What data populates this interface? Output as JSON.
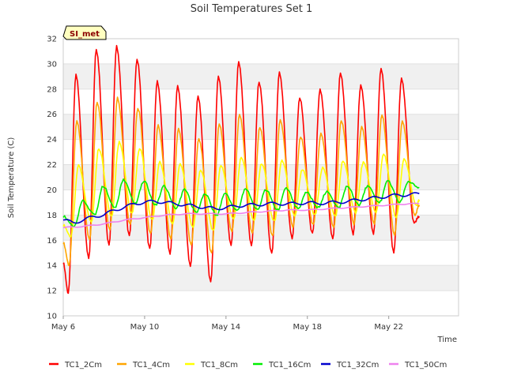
{
  "chart_data": {
    "type": "line",
    "title": "Soil Temperatures Set 1",
    "xlabel": "Time",
    "ylabel": "Soil Temperature (C)",
    "ylim": [
      10,
      32
    ],
    "xlim": [
      "2023-05-06",
      "2023-05-24"
    ],
    "y_ticks": [
      "10",
      "12",
      "14",
      "16",
      "18",
      "20",
      "22",
      "24",
      "26",
      "28",
      "30",
      "32"
    ],
    "x_ticks": [
      "May 6",
      "May 10",
      "May 14",
      "May 18",
      "May 22"
    ],
    "x_tick_dates": [
      "2023-05-06",
      "2023-05-10",
      "2023-05-14",
      "2023-05-18",
      "2023-05-22"
    ],
    "grid": "horizontal bands",
    "legend_position": "bottom",
    "site_label": "SI_met",
    "colors": {
      "TC1_2Cm": "#ff0000",
      "TC1_4Cm": "#ffa500",
      "TC1_8Cm": "#ffff00",
      "TC1_16Cm": "#00ee00",
      "TC1_32Cm": "#0000cd",
      "TC1_50Cm": "#ee82ee",
      "band": "#f0f0f0",
      "badge_fill": "#ffffc0"
    },
    "series": [
      {
        "name": "TC1_2Cm",
        "peaks": [
          {
            "x": "2023-05-06 15:00",
            "y": 29.1
          },
          {
            "x": "2023-05-07 15:00",
            "y": 31.2
          },
          {
            "x": "2023-05-08 15:00",
            "y": 31.4
          },
          {
            "x": "2023-05-09 15:00",
            "y": 30.4
          },
          {
            "x": "2023-05-10 15:00",
            "y": 28.6
          },
          {
            "x": "2023-05-11 15:00",
            "y": 28.2
          },
          {
            "x": "2023-05-12 15:00",
            "y": 27.5
          },
          {
            "x": "2023-05-13 15:00",
            "y": 29.0
          },
          {
            "x": "2023-05-14 15:00",
            "y": 30.2
          },
          {
            "x": "2023-05-15 15:00",
            "y": 28.6
          },
          {
            "x": "2023-05-16 15:00",
            "y": 29.3
          },
          {
            "x": "2023-05-17 15:00",
            "y": 27.3
          },
          {
            "x": "2023-05-18 15:00",
            "y": 28.0
          },
          {
            "x": "2023-05-19 15:00",
            "y": 29.3
          },
          {
            "x": "2023-05-20 15:00",
            "y": 28.3
          },
          {
            "x": "2023-05-21 15:00",
            "y": 29.6
          },
          {
            "x": "2023-05-22 15:00",
            "y": 28.8
          }
        ],
        "troughs": [
          {
            "x": "2023-05-06 06:00",
            "y": 11.8
          },
          {
            "x": "2023-05-07 06:00",
            "y": 14.5
          },
          {
            "x": "2023-05-08 06:00",
            "y": 15.6
          },
          {
            "x": "2023-05-09 06:00",
            "y": 16.3
          },
          {
            "x": "2023-05-10 06:00",
            "y": 15.3
          },
          {
            "x": "2023-05-11 06:00",
            "y": 14.9
          },
          {
            "x": "2023-05-12 06:00",
            "y": 13.9
          },
          {
            "x": "2023-05-13 06:00",
            "y": 12.7
          },
          {
            "x": "2023-05-14 06:00",
            "y": 15.5
          },
          {
            "x": "2023-05-15 06:00",
            "y": 15.5
          },
          {
            "x": "2023-05-16 06:00",
            "y": 14.9
          },
          {
            "x": "2023-05-17 06:00",
            "y": 16.1
          },
          {
            "x": "2023-05-18 06:00",
            "y": 16.5
          },
          {
            "x": "2023-05-19 06:00",
            "y": 16.1
          },
          {
            "x": "2023-05-20 06:00",
            "y": 16.5
          },
          {
            "x": "2023-05-21 06:00",
            "y": 16.5
          },
          {
            "x": "2023-05-22 06:00",
            "y": 15.0
          },
          {
            "x": "2023-05-23 06:00",
            "y": 17.4
          }
        ],
        "start": {
          "x": "2023-05-06 00:00",
          "y": 14.2
        },
        "end": {
          "x": "2023-05-23 12:00",
          "y": 17.9
        }
      },
      {
        "name": "TC1_4Cm",
        "peaks": [
          {
            "x": "2023-05-06 16:00",
            "y": 25.4
          },
          {
            "x": "2023-05-07 16:00",
            "y": 27.0
          },
          {
            "x": "2023-05-08 16:00",
            "y": 27.3
          },
          {
            "x": "2023-05-09 16:00",
            "y": 26.5
          },
          {
            "x": "2023-05-10 16:00",
            "y": 25.1
          },
          {
            "x": "2023-05-11 16:00",
            "y": 24.8
          },
          {
            "x": "2023-05-12 16:00",
            "y": 24.1
          },
          {
            "x": "2023-05-13 16:00",
            "y": 25.2
          },
          {
            "x": "2023-05-14 16:00",
            "y": 26.0
          },
          {
            "x": "2023-05-15 16:00",
            "y": 25.0
          },
          {
            "x": "2023-05-16 16:00",
            "y": 25.5
          },
          {
            "x": "2023-05-17 16:00",
            "y": 24.2
          },
          {
            "x": "2023-05-18 16:00",
            "y": 24.5
          },
          {
            "x": "2023-05-19 16:00",
            "y": 25.5
          },
          {
            "x": "2023-05-20 16:00",
            "y": 25.0
          },
          {
            "x": "2023-05-21 16:00",
            "y": 25.9
          },
          {
            "x": "2023-05-22 16:00",
            "y": 25.4
          }
        ],
        "troughs": [
          {
            "x": "2023-05-06 07:00",
            "y": 14.0
          },
          {
            "x": "2023-05-07 07:00",
            "y": 16.0
          },
          {
            "x": "2023-05-08 07:00",
            "y": 16.8
          },
          {
            "x": "2023-05-09 07:00",
            "y": 17.2
          },
          {
            "x": "2023-05-10 07:00",
            "y": 16.5
          },
          {
            "x": "2023-05-11 07:00",
            "y": 16.1
          },
          {
            "x": "2023-05-12 07:00",
            "y": 15.6
          },
          {
            "x": "2023-05-13 07:00",
            "y": 15.0
          },
          {
            "x": "2023-05-14 07:00",
            "y": 16.6
          },
          {
            "x": "2023-05-15 07:00",
            "y": 16.5
          },
          {
            "x": "2023-05-16 07:00",
            "y": 16.3
          },
          {
            "x": "2023-05-17 07:00",
            "y": 17.0
          },
          {
            "x": "2023-05-18 07:00",
            "y": 17.2
          },
          {
            "x": "2023-05-19 07:00",
            "y": 17.0
          },
          {
            "x": "2023-05-20 07:00",
            "y": 17.3
          },
          {
            "x": "2023-05-21 07:00",
            "y": 17.3
          },
          {
            "x": "2023-05-22 07:00",
            "y": 16.4
          },
          {
            "x": "2023-05-23 07:00",
            "y": 18.0
          }
        ],
        "start": {
          "x": "2023-05-06 00:00",
          "y": 15.8
        },
        "end": {
          "x": "2023-05-23 12:00",
          "y": 18.8
        }
      },
      {
        "name": "TC1_8Cm",
        "peaks": [
          {
            "x": "2023-05-06 18:00",
            "y": 21.9
          },
          {
            "x": "2023-05-07 18:00",
            "y": 23.3
          },
          {
            "x": "2023-05-08 18:00",
            "y": 23.8
          },
          {
            "x": "2023-05-09 18:00",
            "y": 23.3
          },
          {
            "x": "2023-05-10 18:00",
            "y": 22.2
          },
          {
            "x": "2023-05-11 18:00",
            "y": 22.0
          },
          {
            "x": "2023-05-12 18:00",
            "y": 21.6
          },
          {
            "x": "2023-05-13 18:00",
            "y": 21.9
          },
          {
            "x": "2023-05-14 18:00",
            "y": 22.6
          },
          {
            "x": "2023-05-15 18:00",
            "y": 22.1
          },
          {
            "x": "2023-05-16 18:00",
            "y": 22.3
          },
          {
            "x": "2023-05-17 18:00",
            "y": 21.6
          },
          {
            "x": "2023-05-18 18:00",
            "y": 21.8
          },
          {
            "x": "2023-05-19 18:00",
            "y": 22.3
          },
          {
            "x": "2023-05-20 18:00",
            "y": 22.2
          },
          {
            "x": "2023-05-21 18:00",
            "y": 22.8
          },
          {
            "x": "2023-05-22 18:00",
            "y": 22.4
          }
        ],
        "troughs": [
          {
            "x": "2023-05-06 09:00",
            "y": 16.3
          },
          {
            "x": "2023-05-07 09:00",
            "y": 17.4
          },
          {
            "x": "2023-05-08 09:00",
            "y": 17.9
          },
          {
            "x": "2023-05-09 09:00",
            "y": 18.1
          },
          {
            "x": "2023-05-10 09:00",
            "y": 17.6
          },
          {
            "x": "2023-05-11 09:00",
            "y": 17.3
          },
          {
            "x": "2023-05-12 09:00",
            "y": 17.0
          },
          {
            "x": "2023-05-13 09:00",
            "y": 16.8
          },
          {
            "x": "2023-05-14 09:00",
            "y": 17.6
          },
          {
            "x": "2023-05-15 09:00",
            "y": 17.5
          },
          {
            "x": "2023-05-16 09:00",
            "y": 17.5
          },
          {
            "x": "2023-05-17 09:00",
            "y": 17.9
          },
          {
            "x": "2023-05-18 09:00",
            "y": 18.0
          },
          {
            "x": "2023-05-19 09:00",
            "y": 17.9
          },
          {
            "x": "2023-05-20 09:00",
            "y": 18.2
          },
          {
            "x": "2023-05-21 09:00",
            "y": 18.2
          },
          {
            "x": "2023-05-22 09:00",
            "y": 17.8
          },
          {
            "x": "2023-05-23 09:00",
            "y": 18.8
          }
        ],
        "start": {
          "x": "2023-05-06 00:00",
          "y": 17.2
        },
        "end": {
          "x": "2023-05-23 12:00",
          "y": 19.2
        }
      },
      {
        "name": "TC1_16Cm",
        "peaks": [
          {
            "x": "2023-05-06 23:00",
            "y": 19.1
          },
          {
            "x": "2023-05-07 23:00",
            "y": 20.3
          },
          {
            "x": "2023-05-08 23:00",
            "y": 20.8
          },
          {
            "x": "2023-05-09 23:00",
            "y": 20.7
          },
          {
            "x": "2023-05-10 23:00",
            "y": 20.3
          },
          {
            "x": "2023-05-11 23:00",
            "y": 20.0
          },
          {
            "x": "2023-05-12 23:00",
            "y": 19.7
          },
          {
            "x": "2023-05-13 23:00",
            "y": 19.7
          },
          {
            "x": "2023-05-14 23:00",
            "y": 20.1
          },
          {
            "x": "2023-05-15 23:00",
            "y": 20.0
          },
          {
            "x": "2023-05-16 23:00",
            "y": 20.1
          },
          {
            "x": "2023-05-17 23:00",
            "y": 19.8
          },
          {
            "x": "2023-05-18 23:00",
            "y": 19.9
          },
          {
            "x": "2023-05-19 23:00",
            "y": 20.3
          },
          {
            "x": "2023-05-20 23:00",
            "y": 20.3
          },
          {
            "x": "2023-05-21 23:00",
            "y": 20.7
          },
          {
            "x": "2023-05-22 23:00",
            "y": 20.6
          }
        ],
        "troughs": [
          {
            "x": "2023-05-06 13:00",
            "y": 17.1
          },
          {
            "x": "2023-05-07 13:00",
            "y": 18.0
          },
          {
            "x": "2023-05-08 13:00",
            "y": 18.6
          },
          {
            "x": "2023-05-09 13:00",
            "y": 18.9
          },
          {
            "x": "2023-05-10 13:00",
            "y": 18.8
          },
          {
            "x": "2023-05-11 13:00",
            "y": 18.5
          },
          {
            "x": "2023-05-12 13:00",
            "y": 18.2
          },
          {
            "x": "2023-05-13 13:00",
            "y": 18.0
          },
          {
            "x": "2023-05-14 13:00",
            "y": 18.3
          },
          {
            "x": "2023-05-15 13:00",
            "y": 18.4
          },
          {
            "x": "2023-05-16 13:00",
            "y": 18.4
          },
          {
            "x": "2023-05-17 13:00",
            "y": 18.5
          },
          {
            "x": "2023-05-18 13:00",
            "y": 18.6
          },
          {
            "x": "2023-05-19 13:00",
            "y": 18.6
          },
          {
            "x": "2023-05-20 13:00",
            "y": 18.8
          },
          {
            "x": "2023-05-21 13:00",
            "y": 19.0
          },
          {
            "x": "2023-05-22 13:00",
            "y": 19.0
          }
        ],
        "start": {
          "x": "2023-05-06 00:00",
          "y": 17.9
        },
        "end": {
          "x": "2023-05-23 12:00",
          "y": 20.2
        }
      },
      {
        "name": "TC1_32Cm",
        "points": [
          {
            "x": "2023-05-06 00:00",
            "y": 17.6
          },
          {
            "x": "2023-05-06 12:00",
            "y": 17.4
          },
          {
            "x": "2023-05-07 00:00",
            "y": 17.6
          },
          {
            "x": "2023-05-07 12:00",
            "y": 17.9
          },
          {
            "x": "2023-05-08 00:00",
            "y": 18.0
          },
          {
            "x": "2023-05-08 12:00",
            "y": 18.4
          },
          {
            "x": "2023-05-09 00:00",
            "y": 18.6
          },
          {
            "x": "2023-05-09 12:00",
            "y": 18.9
          },
          {
            "x": "2023-05-10 00:00",
            "y": 19.0
          },
          {
            "x": "2023-05-10 12:00",
            "y": 19.1
          },
          {
            "x": "2023-05-11 00:00",
            "y": 19.0
          },
          {
            "x": "2023-05-11 12:00",
            "y": 18.9
          },
          {
            "x": "2023-05-12 00:00",
            "y": 18.8
          },
          {
            "x": "2023-05-12 12:00",
            "y": 18.7
          },
          {
            "x": "2023-05-13 00:00",
            "y": 18.6
          },
          {
            "x": "2023-05-13 12:00",
            "y": 18.5
          },
          {
            "x": "2023-05-14 00:00",
            "y": 18.6
          },
          {
            "x": "2023-05-14 12:00",
            "y": 18.7
          },
          {
            "x": "2023-05-15 00:00",
            "y": 18.8
          },
          {
            "x": "2023-05-15 12:00",
            "y": 18.8
          },
          {
            "x": "2023-05-16 00:00",
            "y": 18.9
          },
          {
            "x": "2023-05-16 12:00",
            "y": 18.9
          },
          {
            "x": "2023-05-17 00:00",
            "y": 18.9
          },
          {
            "x": "2023-05-17 12:00",
            "y": 18.9
          },
          {
            "x": "2023-05-18 00:00",
            "y": 19.0
          },
          {
            "x": "2023-05-18 12:00",
            "y": 18.9
          },
          {
            "x": "2023-05-19 00:00",
            "y": 19.0
          },
          {
            "x": "2023-05-19 12:00",
            "y": 19.0
          },
          {
            "x": "2023-05-20 00:00",
            "y": 19.1
          },
          {
            "x": "2023-05-20 12:00",
            "y": 19.2
          },
          {
            "x": "2023-05-21 00:00",
            "y": 19.3
          },
          {
            "x": "2023-05-21 12:00",
            "y": 19.4
          },
          {
            "x": "2023-05-22 00:00",
            "y": 19.5
          },
          {
            "x": "2023-05-22 12:00",
            "y": 19.6
          },
          {
            "x": "2023-05-23 00:00",
            "y": 19.6
          },
          {
            "x": "2023-05-23 12:00",
            "y": 19.7
          }
        ],
        "diurnal_amplitude": 0.12
      },
      {
        "name": "TC1_50Cm",
        "points": [
          {
            "x": "2023-05-06 00:00",
            "y": 17.0
          },
          {
            "x": "2023-05-07 00:00",
            "y": 17.1
          },
          {
            "x": "2023-05-08 00:00",
            "y": 17.3
          },
          {
            "x": "2023-05-09 00:00",
            "y": 17.6
          },
          {
            "x": "2023-05-10 00:00",
            "y": 17.8
          },
          {
            "x": "2023-05-11 00:00",
            "y": 18.0
          },
          {
            "x": "2023-05-12 00:00",
            "y": 18.1
          },
          {
            "x": "2023-05-13 00:00",
            "y": 18.1
          },
          {
            "x": "2023-05-14 00:00",
            "y": 18.1
          },
          {
            "x": "2023-05-15 00:00",
            "y": 18.2
          },
          {
            "x": "2023-05-16 00:00",
            "y": 18.3
          },
          {
            "x": "2023-05-17 00:00",
            "y": 18.4
          },
          {
            "x": "2023-05-18 00:00",
            "y": 18.4
          },
          {
            "x": "2023-05-19 00:00",
            "y": 18.5
          },
          {
            "x": "2023-05-20 00:00",
            "y": 18.6
          },
          {
            "x": "2023-05-21 00:00",
            "y": 18.7
          },
          {
            "x": "2023-05-22 00:00",
            "y": 18.8
          },
          {
            "x": "2023-05-23 00:00",
            "y": 18.9
          },
          {
            "x": "2023-05-23 12:00",
            "y": 18.9
          }
        ],
        "diurnal_amplitude": 0.04
      }
    ]
  }
}
